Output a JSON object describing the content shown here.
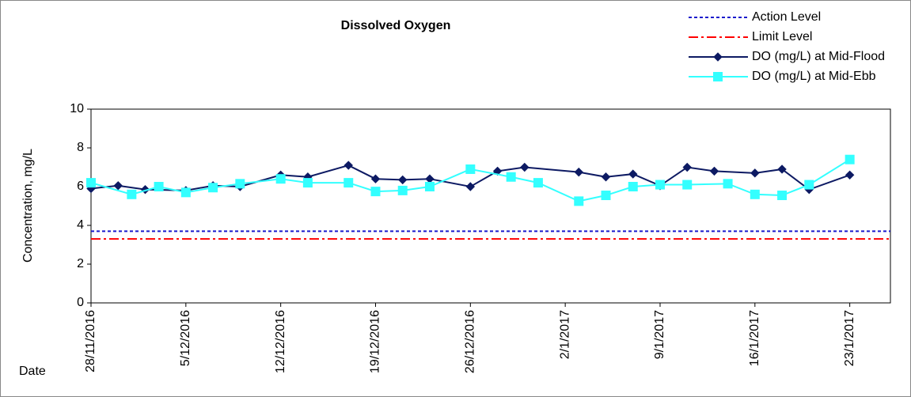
{
  "chart_data": {
    "type": "line",
    "title": "Dissolved Oxygen",
    "ylabel": "Concentration, mg/L",
    "xlabel": "Date",
    "xlim": [
      "28/11/2016",
      "26/1/2017"
    ],
    "xticks": [
      "28/11/2016",
      "5/12/2016",
      "12/12/2016",
      "19/12/2016",
      "26/12/2016",
      "2/1/2017",
      "9/1/2017",
      "16/1/2017",
      "23/1/2017"
    ],
    "ylim": [
      0,
      10
    ],
    "yticks": [
      0,
      2,
      4,
      6,
      8,
      10
    ],
    "series": [
      {
        "name": "Action Level",
        "color": "#1a1acc",
        "style": "dashed",
        "level": 3.7
      },
      {
        "name": "Limit Level",
        "color": "#ff0000",
        "style": "dashdot",
        "level": 3.3
      },
      {
        "name": "DO (mg/L) at Mid-Flood",
        "color": "#0d1a63",
        "marker": "diamond",
        "x": [
          "28/11/2016",
          "30/11/2016",
          "2/12/2016",
          "5/12/2016",
          "7/12/2016",
          "9/12/2016",
          "12/12/2016",
          "14/12/2016",
          "17/12/2016",
          "19/12/2016",
          "21/12/2016",
          "23/12/2016",
          "26/12/2016",
          "28/12/2016",
          "30/12/2016",
          "3/1/2017",
          "5/1/2017",
          "7/1/2017",
          "9/1/2017",
          "11/1/2017",
          "13/1/2017",
          "16/1/2017",
          "18/1/2017",
          "20/1/2017",
          "23/1/2017"
        ],
        "values": [
          5.9,
          6.05,
          5.85,
          5.8,
          6.05,
          6.0,
          6.6,
          6.5,
          7.1,
          6.4,
          6.35,
          6.4,
          6.0,
          6.8,
          7.0,
          6.75,
          6.5,
          6.65,
          6.05,
          7.0,
          6.8,
          6.7,
          6.9,
          5.85,
          6.6
        ]
      },
      {
        "name": "DO (mg/L) at Mid-Ebb",
        "color": "#33ffff",
        "marker": "square",
        "x": [
          "28/11/2016",
          "1/12/2016",
          "3/12/2016",
          "5/12/2016",
          "7/12/2016",
          "9/12/2016",
          "12/12/2016",
          "14/12/2016",
          "17/12/2016",
          "19/12/2016",
          "21/12/2016",
          "23/12/2016",
          "26/12/2016",
          "29/12/2016",
          "31/12/2016",
          "3/1/2017",
          "5/1/2017",
          "7/1/2017",
          "9/1/2017",
          "11/1/2017",
          "14/1/2017",
          "16/1/2017",
          "18/1/2017",
          "20/1/2017",
          "23/1/2017"
        ],
        "values": [
          6.2,
          5.6,
          6.0,
          5.7,
          5.95,
          6.15,
          6.4,
          6.2,
          6.2,
          5.75,
          5.8,
          6.0,
          6.9,
          6.5,
          6.2,
          5.25,
          5.55,
          6.0,
          6.1,
          6.1,
          6.15,
          5.6,
          5.55,
          6.1,
          7.4
        ]
      }
    ]
  }
}
